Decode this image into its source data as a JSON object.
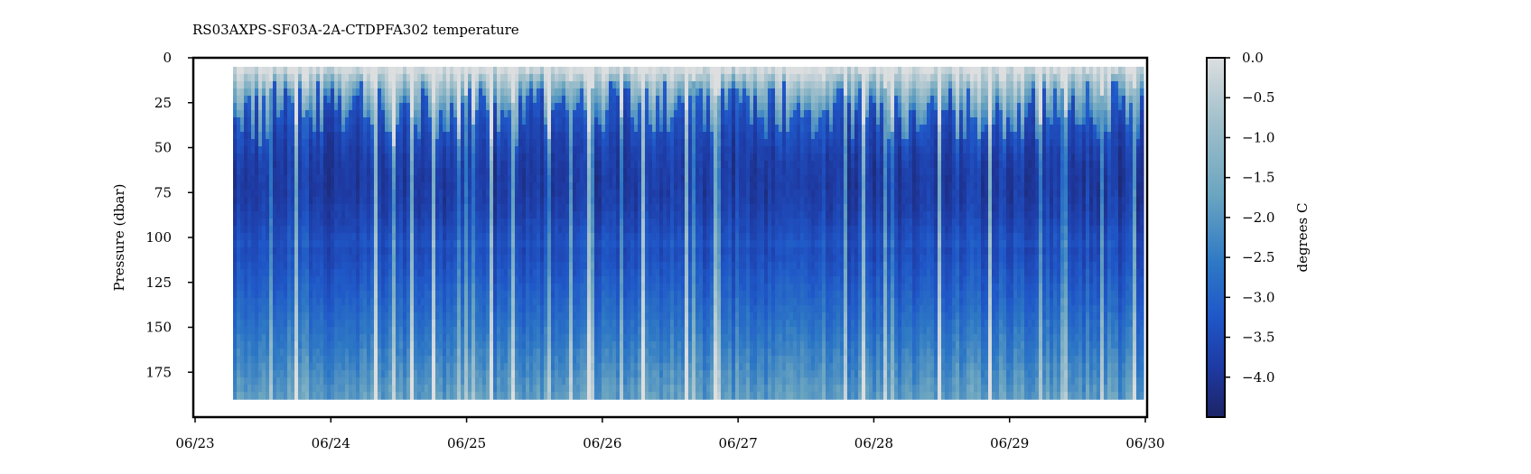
{
  "chart_data": {
    "type": "heatmap",
    "title": "RS03AXPS-SF03A-2A-CTDPFA302 temperature",
    "xlabel": "",
    "ylabel": "Pressure (dbar)",
    "x_ticks": [
      "06/23",
      "06/24",
      "06/25",
      "06/26",
      "06/27",
      "06/28",
      "06/29",
      "06/30"
    ],
    "x_range_days": [
      0,
      7
    ],
    "data_x_range_days": [
      0.28,
      6.98
    ],
    "y_ticks": [
      0,
      25,
      50,
      75,
      100,
      125,
      150,
      175
    ],
    "ylim": [
      200,
      0
    ],
    "data_pressure_range": [
      5,
      190
    ],
    "colorbar": {
      "label": "degrees C",
      "ticks": [
        "0.0",
        "−0.5",
        "−1.0",
        "−1.5",
        "−2.0",
        "−2.5",
        "−3.0",
        "−3.5",
        "−4.0"
      ],
      "tick_values": [
        0.0,
        -0.5,
        -1.0,
        -1.5,
        -2.0,
        -2.5,
        -3.0,
        -3.5,
        -4.0
      ],
      "range": [
        -4.5,
        0.0
      ],
      "colors": [
        "#dcdedf",
        "#a3c1cc",
        "#6ba5c0",
        "#2e79c5",
        "#1f57c8",
        "#1e3aa3",
        "#1c2466"
      ]
    }
  }
}
